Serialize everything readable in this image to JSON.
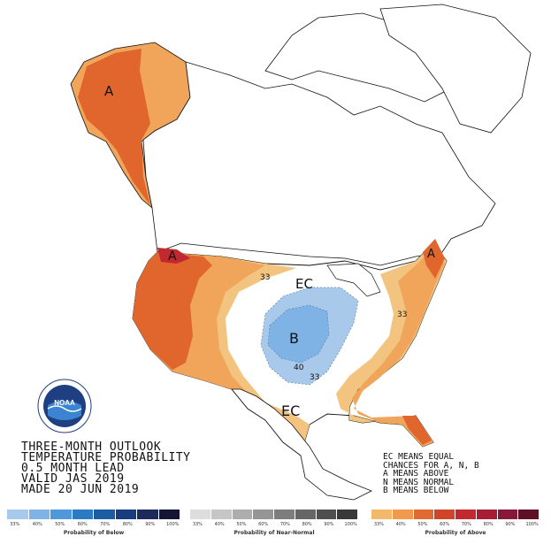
{
  "title_lines": [
    "THREE-MONTH OUTLOOK",
    "TEMPERATURE PROBABILITY",
    "0.5 MONTH LEAD",
    "VALID JAS 2019",
    "MADE 20 JUN 2019"
  ],
  "ec_legend_lines": [
    "EC MEANS EQUAL",
    "CHANCES FOR A, N, B",
    "A MEANS ABOVE",
    "N MEANS NORMAL",
    "B MEANS BELOW"
  ],
  "map_labels": {
    "alaska_above": "A",
    "pacific_nw_above": "A",
    "new_england_above": "A",
    "central_below": "B",
    "ec_north": "EC",
    "ec_south": "EC",
    "contour_33_north": "33",
    "contour_33_east": "33",
    "contour_33_south": "33",
    "contour_40": "40"
  },
  "logo": {
    "name": "NOAA",
    "icon": "noaa-logo-icon"
  },
  "legends": {
    "below": {
      "label": "Probability of Below",
      "ticks": [
        "33%",
        "40%",
        "50%",
        "60%",
        "70%",
        "80%",
        "90%",
        "100%"
      ],
      "colors": [
        "#a6c9ec",
        "#7fb2e5",
        "#4f98db",
        "#2b7bc4",
        "#1c5ca3",
        "#173d80",
        "#1c2a5c",
        "#141434"
      ]
    },
    "normal": {
      "label": "Probability of Near-Normal",
      "ticks": [
        "33%",
        "40%",
        "50%",
        "60%",
        "70%",
        "80%",
        "90%",
        "100%"
      ],
      "colors": [
        "#dddddd",
        "#c6c6c6",
        "#adadad",
        "#959595",
        "#7d7d7d",
        "#666666",
        "#4f4f4f",
        "#383838"
      ]
    },
    "above": {
      "label": "Probability of Above",
      "ticks": [
        "33%",
        "40%",
        "50%",
        "60%",
        "70%",
        "80%",
        "90%",
        "100%"
      ],
      "colors": [
        "#f3b86b",
        "#f19a4d",
        "#e06a2f",
        "#d0442a",
        "#c1282f",
        "#a81d36",
        "#87183a",
        "#5e1024"
      ]
    }
  },
  "map_colors": {
    "above_33": "#f3c47f",
    "above_40": "#f0a55a",
    "above_50": "#e0662e",
    "below_33": "#a9c9ea",
    "below_40": "#7fb2e5",
    "land": "#ffffff",
    "border": "#111111"
  }
}
